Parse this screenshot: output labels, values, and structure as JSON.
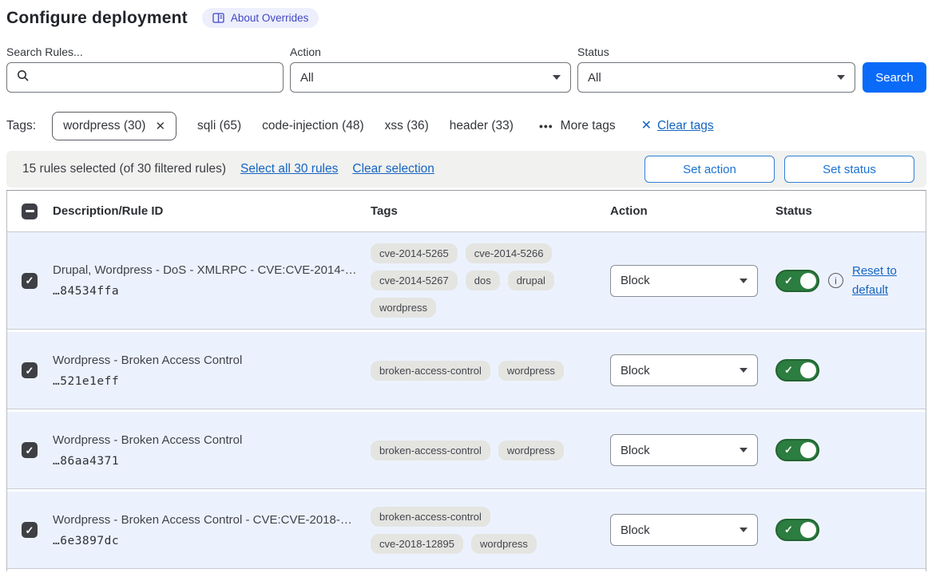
{
  "header": {
    "title": "Configure deployment",
    "about_badge": "About Overrides"
  },
  "filters": {
    "search_label": "Search Rules...",
    "search_value": "",
    "action_label": "Action",
    "action_value": "All",
    "status_label": "Status",
    "status_value": "All",
    "search_button": "Search"
  },
  "tags_bar": {
    "label": "Tags:",
    "selected_tag": "wordpress (30)",
    "tags": [
      "sqli (65)",
      "code-injection (48)",
      "xss (36)",
      "header (33)"
    ],
    "more_tags": "More tags",
    "clear_tags": "Clear tags"
  },
  "selection_bar": {
    "summary": "15 rules selected (of 30 filtered rules)",
    "select_all": "Select all 30 rules",
    "clear_selection": "Clear selection",
    "set_action": "Set action",
    "set_status": "Set status"
  },
  "table": {
    "columns": [
      "Description/Rule ID",
      "Tags",
      "Action",
      "Status"
    ],
    "rows": [
      {
        "description": "Drupal, Wordpress - DoS - XMLRPC - CVE:CVE-2014-…",
        "rule_id": "…84534ffa",
        "tags": [
          "cve-2014-5265",
          "cve-2014-5266",
          "cve-2014-5267",
          "dos",
          "drupal",
          "wordpress"
        ],
        "action": "Block",
        "enabled": true,
        "has_reset": true,
        "reset": "Reset to default"
      },
      {
        "description": "Wordpress - Broken Access Control",
        "rule_id": "…521e1eff",
        "tags": [
          "broken-access-control",
          "wordpress"
        ],
        "action": "Block",
        "enabled": true,
        "has_reset": false,
        "reset": ""
      },
      {
        "description": "Wordpress - Broken Access Control",
        "rule_id": "…86aa4371",
        "tags": [
          "broken-access-control",
          "wordpress"
        ],
        "action": "Block",
        "enabled": true,
        "has_reset": false,
        "reset": ""
      },
      {
        "description": "Wordpress - Broken Access Control - CVE:CVE-2018-…",
        "rule_id": "…6e3897dc",
        "tags": [
          "broken-access-control",
          "cve-2018-12895",
          "wordpress"
        ],
        "action": "Block",
        "enabled": true,
        "has_reset": false,
        "reset": ""
      }
    ]
  },
  "icons": {
    "check": "✓",
    "remove": "✕",
    "more_dots": "•••",
    "info": "i"
  },
  "colors": {
    "search_button_blue": "#0a6bf8",
    "link_blue": "#1565c0",
    "outline_button_blue": "#1b72d2",
    "badge_bg": "#edeffc",
    "badge_text": "#4147c4",
    "row_bg": "#ecf2fd",
    "pill_bg": "#e4e4e1",
    "toggle_green": "#2c7d40",
    "checkbox_dark": "#3e4045",
    "selection_bar_bg": "#f1f1f0"
  }
}
